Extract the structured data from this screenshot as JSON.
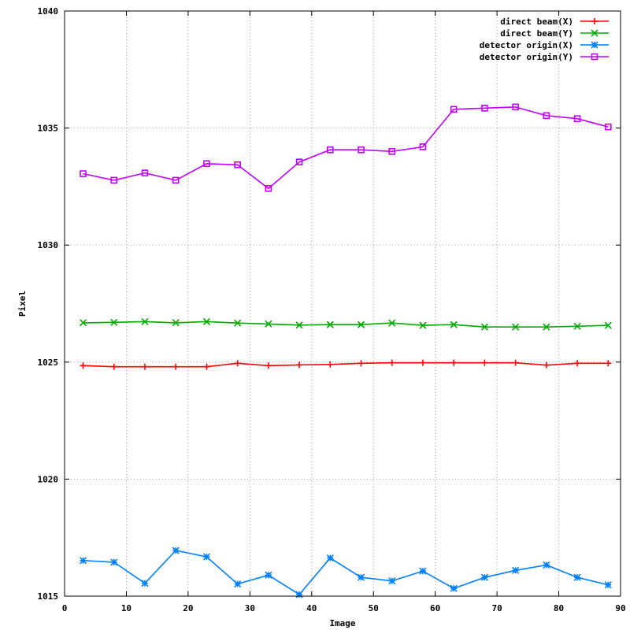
{
  "chart_data": {
    "type": "line",
    "title": "",
    "xlabel": "Image",
    "ylabel": "Pixel",
    "xlim": [
      0,
      90
    ],
    "ylim": [
      1015,
      1040
    ],
    "xticks": [
      0,
      10,
      20,
      30,
      40,
      50,
      60,
      70,
      80,
      90
    ],
    "yticks": [
      1015,
      1020,
      1025,
      1030,
      1035,
      1040
    ],
    "grid": true,
    "legend_position": "top-right",
    "x": [
      3,
      8,
      13,
      18,
      23,
      28,
      33,
      38,
      43,
      48,
      53,
      58,
      63,
      68,
      73,
      78,
      83,
      88
    ],
    "series": [
      {
        "name": "direct beam(X)",
        "color": "#ff0000",
        "marker": "plus",
        "values": [
          1024.85,
          1024.8,
          1024.8,
          1024.8,
          1024.8,
          1024.95,
          1024.85,
          1024.88,
          1024.9,
          1024.95,
          1024.97,
          1024.97,
          1024.97,
          1024.97,
          1024.97,
          1024.87,
          1024.95,
          1024.95
        ]
      },
      {
        "name": "direct beam(Y)",
        "color": "#00aa00",
        "marker": "cross",
        "values": [
          1026.68,
          1026.7,
          1026.73,
          1026.68,
          1026.73,
          1026.67,
          1026.63,
          1026.58,
          1026.6,
          1026.6,
          1026.67,
          1026.57,
          1026.6,
          1026.5,
          1026.5,
          1026.5,
          1026.53,
          1026.57
        ]
      },
      {
        "name": "detector origin(X)",
        "color": "#0080ff",
        "marker": "star",
        "values": [
          1016.52,
          1016.45,
          1015.55,
          1016.95,
          1016.68,
          1015.52,
          1015.9,
          1015.07,
          1016.63,
          1015.8,
          1015.65,
          1016.07,
          1015.33,
          1015.8,
          1016.1,
          1016.33,
          1015.8,
          1015.48
        ]
      },
      {
        "name": "detector origin(Y)",
        "color": "#c000ff",
        "marker": "square",
        "values": [
          1033.05,
          1032.77,
          1033.08,
          1032.77,
          1033.48,
          1033.43,
          1032.42,
          1033.55,
          1034.07,
          1034.07,
          1034.0,
          1034.2,
          1035.8,
          1035.85,
          1035.9,
          1035.53,
          1035.4,
          1035.05
        ]
      }
    ]
  }
}
